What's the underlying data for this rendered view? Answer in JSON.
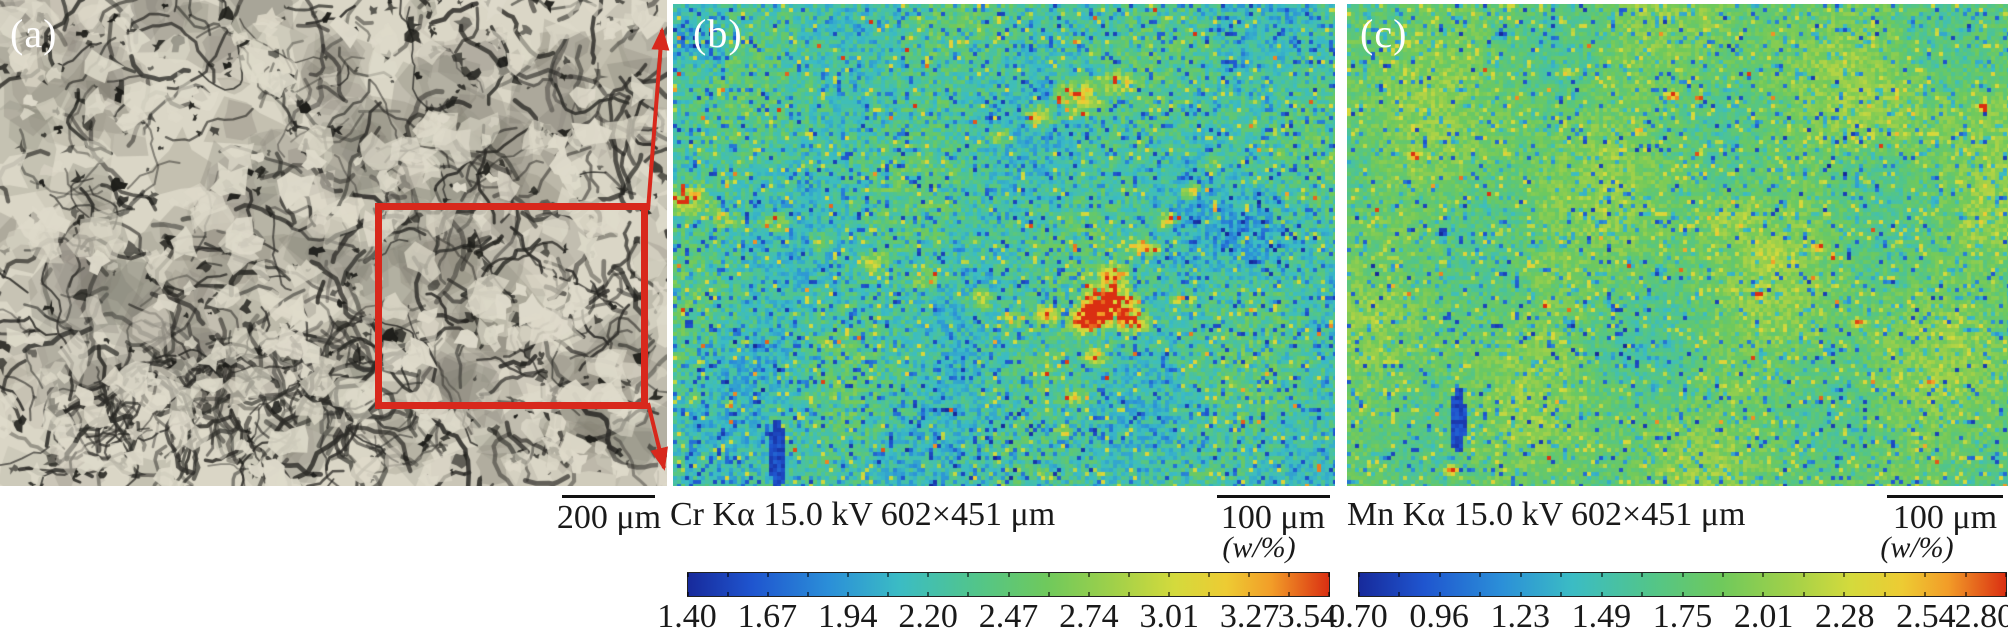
{
  "figure": {
    "panels": {
      "a": {
        "label": "(a)",
        "scale_bar": "200 μm"
      },
      "b": {
        "label": "(b)",
        "caption": "Cr Kα 15.0 kV 602×451 μm",
        "scale_bar": "100 μm",
        "unit": "(w/%)",
        "colorbar_ticks": [
          "1.40",
          "1.67",
          "1.94",
          "2.20",
          "2.47",
          "2.74",
          "3.01",
          "3.27",
          "3.54"
        ]
      },
      "c": {
        "label": "(c)",
        "caption": "Mn Kα 15.0 kV 602×451 μm",
        "scale_bar": "100 μm",
        "unit": "(w/%)",
        "colorbar_ticks": [
          "0.70",
          "0.96",
          "1.23",
          "1.49",
          "1.75",
          "2.01",
          "2.28",
          "2.54",
          "2.80"
        ]
      }
    },
    "colors": {
      "annotation_red": "#d8281c",
      "text": "#1a1a1a",
      "micrograph_background": "#dad6c6",
      "jet_stops": [
        [
          0.0,
          "#172a9b"
        ],
        [
          0.1,
          "#1f55cf"
        ],
        [
          0.22,
          "#2b8fd8"
        ],
        [
          0.33,
          "#3bbcc4"
        ],
        [
          0.45,
          "#52c58a"
        ],
        [
          0.56,
          "#6fc95c"
        ],
        [
          0.66,
          "#9ed04a"
        ],
        [
          0.76,
          "#d4da3c"
        ],
        [
          0.84,
          "#edcb33"
        ],
        [
          0.91,
          "#f29d28"
        ],
        [
          1.0,
          "#da2f12"
        ]
      ]
    }
  },
  "chart_data": [
    {
      "type": "heatmap",
      "title": "Cr Kα 15.0 kV 602×451 μm",
      "colorbar_unit": "(w/%)",
      "colorbar_ticks": [
        1.4,
        1.67,
        1.94,
        2.2,
        2.47,
        2.74,
        3.01,
        3.27,
        3.54
      ],
      "range": [
        1.4,
        3.54
      ],
      "legend_position": "bottom"
    },
    {
      "type": "heatmap",
      "title": "Mn Kα 15.0 kV 602×451 μm",
      "colorbar_unit": "(w/%)",
      "colorbar_ticks": [
        0.7,
        0.96,
        1.23,
        1.49,
        1.75,
        2.01,
        2.28,
        2.54,
        2.8
      ],
      "range": [
        0.7,
        2.8
      ],
      "legend_position": "bottom"
    }
  ]
}
